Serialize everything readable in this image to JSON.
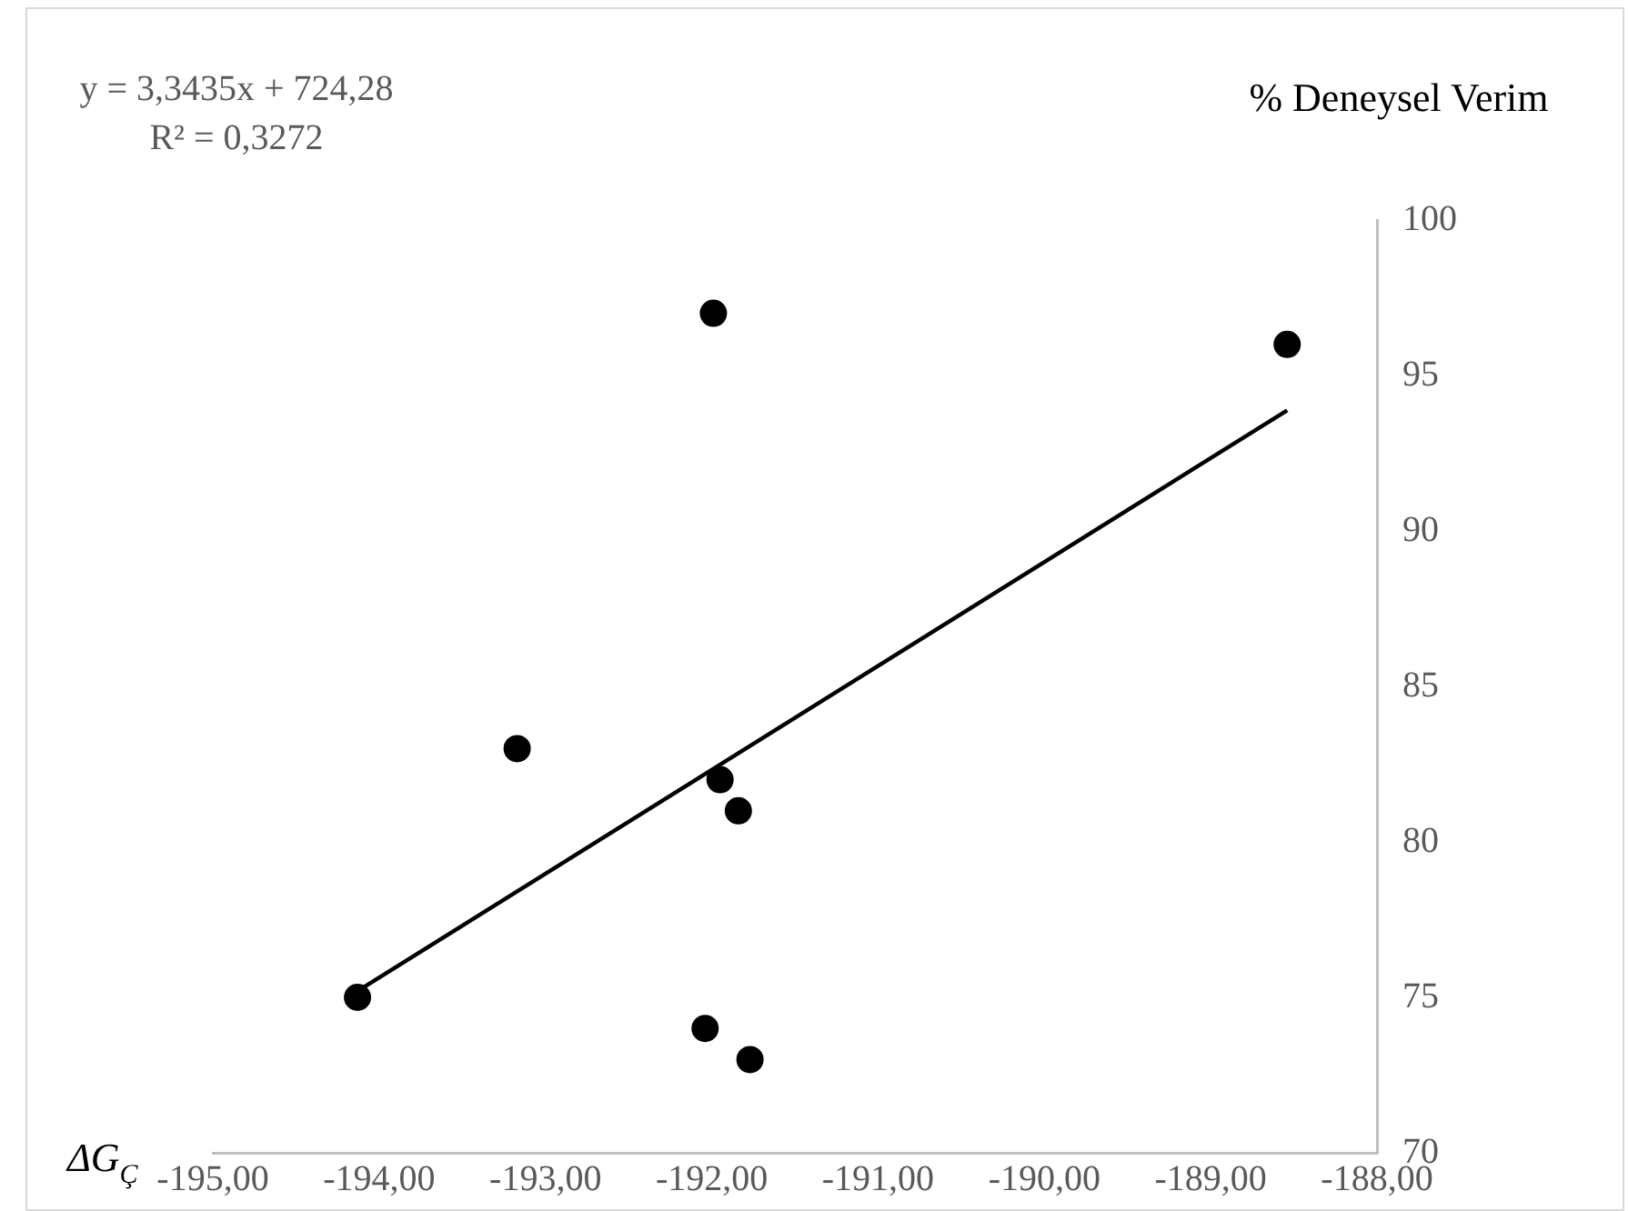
{
  "chart_data": {
    "type": "scatter",
    "ylabel": "% Deneysel Verim",
    "xlabel": "ΔG$_{Ç}$",
    "annotations": [
      "y = 3,3435x + 724,28",
      "R² = 0,3272"
    ],
    "series": [
      {
        "type": "scatter",
        "color": "#000000",
        "marker": "circle",
        "x": [
          -194.13,
          -193.17,
          -191.99,
          -191.95,
          -191.84,
          -192.04,
          -191.77,
          -188.54
        ],
        "values": [
          75,
          83,
          97,
          82,
          81,
          74,
          73,
          96
        ]
      },
      {
        "type": "line",
        "color": "#000000",
        "marker": "none",
        "line_style": "solid",
        "x": [
          -194.13,
          -188.54
        ],
        "values": [
          75.2,
          93.88
        ]
      }
    ],
    "xlim": [
      -195,
      -188
    ],
    "xticks": [
      {
        "value": -195,
        "label": "-195,00"
      },
      {
        "value": -194,
        "label": "-194,00"
      },
      {
        "value": -193,
        "label": "-193,00"
      },
      {
        "value": -192,
        "label": "-192,00"
      },
      {
        "value": -191,
        "label": "-191,00"
      },
      {
        "value": -190,
        "label": "-190,00"
      },
      {
        "value": -189,
        "label": "-189,00"
      },
      {
        "value": -188,
        "label": "-188,00"
      }
    ],
    "ylim": [
      70,
      100
    ],
    "yticks": [
      70,
      75,
      80,
      85,
      90,
      95,
      100
    ],
    "grid": false,
    "legend": false
  }
}
